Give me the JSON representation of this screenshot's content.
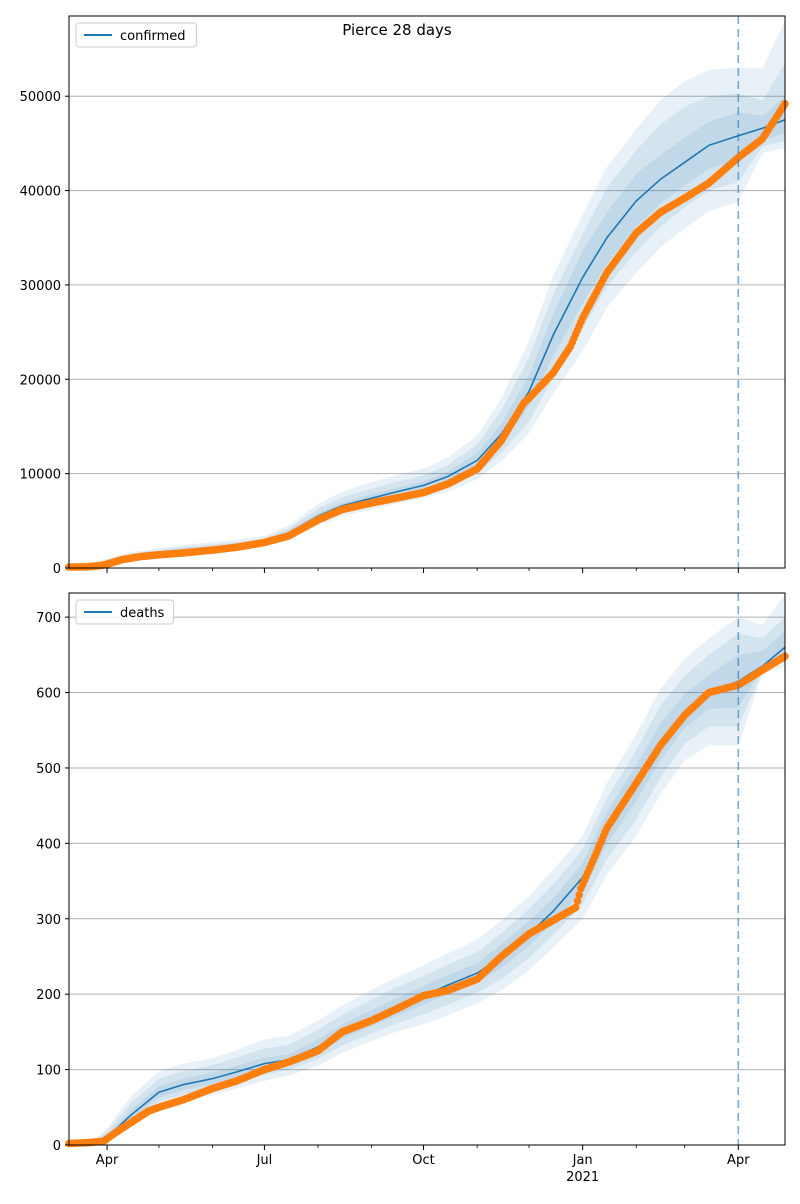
{
  "figure": {
    "title": "Pierce 28 days"
  },
  "colors": {
    "model_line": "#1f77b4",
    "observed_points": "#ff7f0e",
    "band_fill": "#1f77b4",
    "grid": "#b0b0b0",
    "forecast_marker": "#1f77b4"
  },
  "x_axis": {
    "start": "2020-03-10",
    "end": "2021-04-28",
    "forecast_start": "2021-04-01",
    "major_ticks": [
      {
        "date": "2020-04-01",
        "label": "Apr",
        "sublabel": ""
      },
      {
        "date": "2020-07-01",
        "label": "Jul",
        "sublabel": ""
      },
      {
        "date": "2020-10-01",
        "label": "Oct",
        "sublabel": ""
      },
      {
        "date": "2021-01-01",
        "label": "Jan",
        "sublabel": "2021"
      },
      {
        "date": "2021-04-01",
        "label": "Apr",
        "sublabel": ""
      }
    ],
    "minor_tick_dates": [
      "2020-05-01",
      "2020-06-01",
      "2020-08-01",
      "2020-09-01",
      "2020-11-01",
      "2020-12-01",
      "2021-02-01",
      "2021-03-01"
    ]
  },
  "chart_data": [
    {
      "type": "line",
      "legend": "confirmed",
      "legend_position": "upper left",
      "grid": "horizontal",
      "ylim": [
        0,
        58500
      ],
      "yticks": [
        0,
        10000,
        20000,
        30000,
        40000,
        50000
      ],
      "model_curve": {
        "x": [
          "2020-03-10",
          "2020-03-20",
          "2020-04-01",
          "2020-04-15",
          "2020-05-01",
          "2020-05-15",
          "2020-06-01",
          "2020-06-15",
          "2020-07-01",
          "2020-07-15",
          "2020-08-01",
          "2020-08-15",
          "2020-09-01",
          "2020-09-15",
          "2020-10-01",
          "2020-10-15",
          "2020-11-01",
          "2020-11-15",
          "2020-12-01",
          "2020-12-15",
          "2021-01-01",
          "2021-01-15",
          "2021-02-01",
          "2021-02-15",
          "2021-03-01",
          "2021-03-15",
          "2021-04-01",
          "2021-04-15",
          "2021-04-28"
        ],
        "y": [
          0,
          100,
          600,
          1200,
          1600,
          1900,
          2150,
          2400,
          2800,
          3700,
          5500,
          6600,
          7400,
          8050,
          8750,
          9700,
          11400,
          14200,
          18700,
          24700,
          30800,
          35000,
          38900,
          41200,
          43000,
          44800,
          45800,
          46600,
          47500
        ],
        "bands": [
          {
            "low": [
              0,
              20,
              300,
              900,
              1300,
              1550,
              1800,
              2000,
              2350,
              3000,
              4500,
              5500,
              6200,
              6800,
              7400,
              8100,
              9400,
              11300,
              14300,
              18500,
              23000,
              27600,
              31300,
              34000,
              36000,
              37800,
              38800,
              44000,
              44500
            ],
            "high": [
              300,
              300,
              1000,
              1700,
              2100,
              2450,
              2750,
              3000,
              3400,
              4500,
              6800,
              8100,
              9100,
              9800,
              10500,
              11700,
              14000,
              18000,
              24000,
              31000,
              37500,
              42500,
              46500,
              49600,
              51600,
              52800,
              53000,
              53000,
              58000
            ]
          },
          {
            "low": [
              0,
              40,
              380,
              1000,
              1380,
              1650,
              1900,
              2150,
              2500,
              3250,
              4850,
              5900,
              6600,
              7200,
              7800,
              8600,
              10000,
              12200,
              15500,
              20200,
              25300,
              29800,
              33500,
              36200,
              38200,
              40000,
              40900,
              44700,
              45300
            ],
            "high": [
              220,
              220,
              850,
              1500,
              1920,
              2250,
              2500,
              2750,
              3150,
              4200,
              6300,
              7500,
              8400,
              9100,
              9800,
              10900,
              13100,
              16700,
              22300,
              29000,
              35400,
              40300,
              44300,
              47000,
              48900,
              50000,
              50300,
              49500,
              53500
            ]
          },
          {
            "low": [
              0,
              60,
              480,
              1080,
              1480,
              1760,
              2010,
              2270,
              2650,
              3470,
              5170,
              6250,
              7000,
              7620,
              8280,
              9160,
              10700,
              13200,
              17100,
              22500,
              28000,
              32300,
              36100,
              38600,
              40500,
              42300,
              43300,
              45300,
              46100
            ],
            "high": [
              160,
              160,
              720,
              1330,
              1730,
              2040,
              2300,
              2540,
              2970,
              3950,
              5840,
              6960,
              7800,
              8460,
              9200,
              10220,
              12200,
              15300,
              20400,
              27000,
              33600,
              37700,
              41800,
              43800,
              45600,
              47300,
              48300,
              47900,
              50000
            ]
          }
        ]
      },
      "observed": {
        "x": [
          "2020-03-10",
          "2020-03-20",
          "2020-03-28",
          "2020-04-01",
          "2020-04-10",
          "2020-04-20",
          "2020-05-01",
          "2020-05-15",
          "2020-06-01",
          "2020-06-15",
          "2020-07-01",
          "2020-07-15",
          "2020-08-01",
          "2020-08-15",
          "2020-09-01",
          "2020-09-15",
          "2020-10-01",
          "2020-10-15",
          "2020-11-01",
          "2020-11-15",
          "2020-11-28",
          "2020-12-01",
          "2020-12-15",
          "2020-12-25",
          "2021-01-01",
          "2021-01-15",
          "2021-02-01",
          "2021-02-15",
          "2021-03-01",
          "2021-03-15",
          "2021-04-01",
          "2021-04-15",
          "2021-04-28"
        ],
        "y": [
          100,
          120,
          250,
          400,
          900,
          1200,
          1400,
          1600,
          1900,
          2200,
          2700,
          3400,
          5100,
          6200,
          6900,
          7400,
          8000,
          8900,
          10500,
          13500,
          17500,
          18000,
          20700,
          23500,
          26500,
          31300,
          35500,
          37700,
          39200,
          40800,
          43500,
          45500,
          49200
        ]
      }
    },
    {
      "type": "line",
      "legend": "deaths",
      "legend_position": "upper left",
      "grid": "horizontal",
      "ylim": [
        0,
        732
      ],
      "yticks": [
        0,
        100,
        200,
        300,
        400,
        500,
        600,
        700
      ],
      "model_curve": {
        "x": [
          "2020-03-10",
          "2020-03-25",
          "2020-04-01",
          "2020-04-15",
          "2020-05-01",
          "2020-05-15",
          "2020-06-01",
          "2020-06-15",
          "2020-07-01",
          "2020-07-15",
          "2020-08-01",
          "2020-08-15",
          "2020-09-01",
          "2020-09-15",
          "2020-10-01",
          "2020-10-15",
          "2020-11-01",
          "2020-11-15",
          "2020-12-01",
          "2020-12-15",
          "2021-01-01",
          "2021-01-15",
          "2021-02-01",
          "2021-02-15",
          "2021-03-01",
          "2021-03-15",
          "2021-04-01",
          "2021-04-15",
          "2021-04-28"
        ],
        "y": [
          2,
          3,
          10,
          40,
          70,
          80,
          88,
          97,
          108,
          113,
          130,
          150,
          168,
          182,
          198,
          212,
          228,
          250,
          280,
          310,
          355,
          420,
          480,
          535,
          575,
          600,
          615,
          635,
          660
        ],
        "bands": [
          {
            "low": [
              0,
              0,
              3,
              25,
              50,
              60,
              66,
              75,
              85,
              92,
              105,
              122,
              138,
              150,
              160,
              172,
              188,
              205,
              232,
              262,
              300,
              358,
              410,
              465,
              510,
              530,
              530,
              625,
              635
            ],
            "high": [
              6,
              8,
              22,
              65,
              98,
              108,
              115,
              126,
              140,
              145,
              165,
              185,
              206,
              222,
              238,
              254,
              272,
              298,
              330,
              365,
              410,
              480,
              545,
              605,
              645,
              672,
              700,
              690,
              730
            ]
          },
          {
            "low": [
              0,
              1,
              5,
              30,
              57,
              67,
              74,
              83,
              93,
              100,
              114,
              132,
              148,
              161,
              173,
              186,
              202,
              220,
              248,
              279,
              320,
              379,
              432,
              487,
              532,
              555,
              555,
              628,
              642
            ],
            "high": [
              4,
              6,
              18,
              56,
              88,
              98,
              106,
              116,
              128,
              133,
              153,
              173,
              193,
              209,
              224,
              239,
              256,
              281,
              313,
              346,
              392,
              460,
              524,
              583,
              622,
              650,
              678,
              672,
              700
            ]
          },
          {
            "low": [
              1,
              2,
              7,
              35,
              63,
              73,
              81,
              90,
              101,
              107,
              122,
              141,
              158,
              171,
              186,
              199,
              215,
              235,
              264,
              295,
              337,
              399,
              456,
              511,
              553,
              578,
              580,
              632,
              650
            ],
            "high": [
              3,
              4,
              13,
              47,
              78,
              88,
              96,
              105,
              116,
              120,
              140,
              160,
              179,
              194,
              211,
              225,
              241,
              266,
              297,
              327,
              374,
              442,
              504,
              560,
              598,
              623,
              650,
              655,
              682
            ]
          }
        ]
      },
      "observed": {
        "x": [
          "2020-03-10",
          "2020-03-20",
          "2020-03-30",
          "2020-04-05",
          "2020-04-15",
          "2020-04-25",
          "2020-05-01",
          "2020-05-15",
          "2020-06-01",
          "2020-06-15",
          "2020-07-01",
          "2020-07-15",
          "2020-08-01",
          "2020-08-15",
          "2020-09-01",
          "2020-09-15",
          "2020-10-01",
          "2020-10-15",
          "2020-11-01",
          "2020-11-15",
          "2020-12-01",
          "2020-12-15",
          "2020-12-28",
          "2020-12-31",
          "2021-01-15",
          "2021-02-01",
          "2021-02-15",
          "2021-03-01",
          "2021-03-15",
          "2021-04-01",
          "2021-04-15",
          "2021-04-28"
        ],
        "y": [
          2,
          3,
          5,
          15,
          30,
          45,
          50,
          60,
          75,
          85,
          100,
          110,
          125,
          150,
          165,
          180,
          198,
          205,
          220,
          250,
          280,
          298,
          315,
          340,
          420,
          480,
          530,
          570,
          600,
          610,
          630,
          648
        ]
      }
    }
  ]
}
